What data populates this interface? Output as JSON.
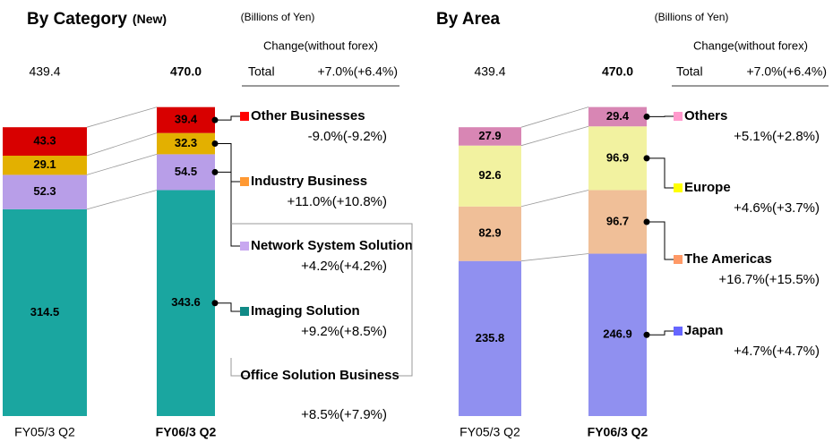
{
  "chart_data": [
    {
      "type": "stacked-bar",
      "title": "By Category",
      "title_note": "(New)",
      "unit": "(Billions of Yen)",
      "change_label": "Change(without forex)",
      "total_label": "Total",
      "total_change": "+7.0%(+6.4%)",
      "categories": [
        "FY05/3 Q2",
        "FY06/3 Q2"
      ],
      "totals": [
        439.4,
        470.0
      ],
      "total_labels": [
        "439.4",
        "470.0"
      ],
      "label_color": "#ffffff",
      "series": [
        {
          "name": "Imaging Solution",
          "color": "#1aa6a0",
          "marker_color": "#108a86",
          "values": [
            314.5,
            343.6
          ],
          "change": "+9.2%(+8.5%)"
        },
        {
          "name": "Network System Solution",
          "color": "#b89ee8",
          "marker_color": "#c8a8f0",
          "values": [
            52.3,
            54.5
          ],
          "change": "+4.2%(+4.2%)"
        },
        {
          "name": "Industry Business",
          "color": "#e3b000",
          "marker_color": "#ff9933",
          "values": [
            29.1,
            32.3
          ],
          "change": "+11.0%(+10.8%)"
        },
        {
          "name": "Other Businesses",
          "color": "#d80000",
          "marker_color": "#ff0000",
          "values": [
            43.3,
            39.4
          ],
          "change": "-9.0%(-9.2%)"
        }
      ],
      "group": {
        "name": "Office Solution Business",
        "change": "+8.5%(+7.9%)"
      }
    },
    {
      "type": "stacked-bar",
      "title": "By Area",
      "unit": "(Billions of Yen)",
      "change_label": "Change(without forex)",
      "total_label": "Total",
      "total_change": "+7.0%(+6.4%)",
      "categories": [
        "FY05/3 Q2",
        "FY06/3 Q2"
      ],
      "totals": [
        439.4,
        470.0
      ],
      "total_labels": [
        "439.4",
        "470.0"
      ],
      "label_color": "#222222",
      "series": [
        {
          "name": "Japan",
          "color": "#9090f0",
          "marker_color": "#6666ff",
          "values": [
            235.8,
            246.9
          ],
          "change": "+4.7%(+4.7%)"
        },
        {
          "name": "The Americas",
          "color": "#f0bf98",
          "marker_color": "#ff9966",
          "values": [
            82.9,
            96.7
          ],
          "change": "+16.7%(+15.5%)"
        },
        {
          "name": "Europe",
          "color": "#f2f2a0",
          "marker_color": "#ffff00",
          "values": [
            92.6,
            96.9
          ],
          "change": "+4.6%(+3.7%)"
        },
        {
          "name": "Others",
          "color": "#d886b4",
          "marker_color": "#ff99cc",
          "values": [
            27.9,
            29.4
          ],
          "change": "+5.1%(+2.8%)"
        }
      ]
    }
  ]
}
